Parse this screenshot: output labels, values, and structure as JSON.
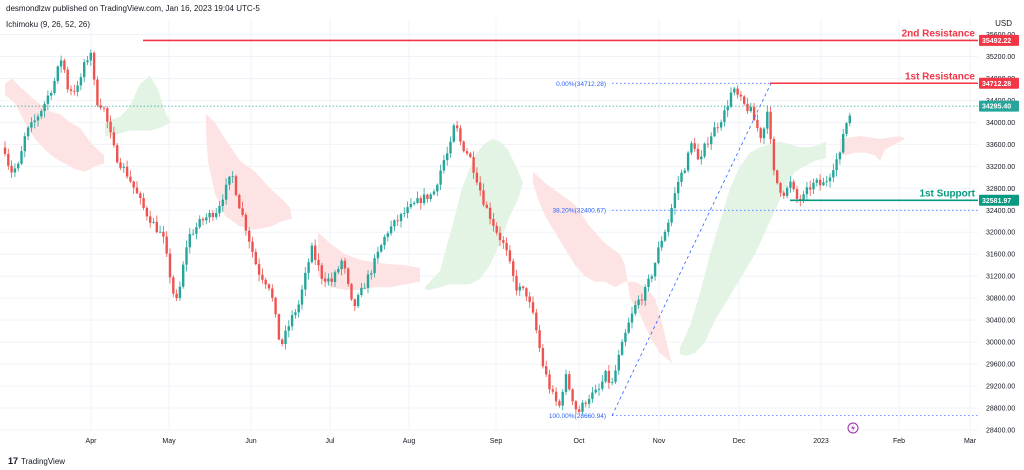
{
  "header": {
    "publish_line": "desmondlzw published on TradingView.com, Jan 16, 2023 19:04 UTC-5",
    "indicator_label": "Ichimoku (9, 26, 52, 26)",
    "currency": "USD",
    "brand_label": "TradingView"
  },
  "chart_data": {
    "type": "candlestick",
    "ylim": [
      28400,
      35700
    ],
    "y_ticks": [
      28400,
      28800,
      29200,
      29600,
      30000,
      30400,
      30800,
      31200,
      31600,
      32000,
      32400,
      32800,
      33200,
      33600,
      34000,
      34400,
      34800,
      35200,
      35600
    ],
    "x_tick_labels": [
      "Apr",
      "May",
      "Jun",
      "Jul",
      "Aug",
      "Sep",
      "Oct",
      "Nov",
      "Dec",
      "2023",
      "Feb",
      "Mar"
    ],
    "grid": true,
    "colors": {
      "up": "#26a69a",
      "down": "#ef5350",
      "resistance": "#f23645",
      "support": "#089981",
      "fib": "#2962ff",
      "cloud_bull": "#e3f4e5",
      "cloud_bear": "#fde3e3",
      "last_price": "#26a69a"
    },
    "anchors": [
      [
        0,
        33700
      ],
      [
        5,
        33500
      ],
      [
        10,
        33100
      ],
      [
        18,
        33200
      ],
      [
        25,
        33800
      ],
      [
        33,
        34000
      ],
      [
        42,
        34300
      ],
      [
        52,
        34700
      ],
      [
        60,
        35200
      ],
      [
        66,
        34600
      ],
      [
        75,
        34600
      ],
      [
        82,
        35050
      ],
      [
        88,
        35300
      ],
      [
        93,
        34400
      ],
      [
        100,
        34300
      ],
      [
        112,
        33400
      ],
      [
        125,
        33000
      ],
      [
        140,
        32400
      ],
      [
        158,
        31900
      ],
      [
        168,
        30900
      ],
      [
        172,
        30700
      ],
      [
        182,
        31900
      ],
      [
        195,
        32200
      ],
      [
        210,
        32400
      ],
      [
        225,
        33050
      ],
      [
        232,
        32500
      ],
      [
        236,
        32250
      ],
      [
        250,
        31300
      ],
      [
        262,
        31000
      ],
      [
        272,
        29900
      ],
      [
        282,
        30400
      ],
      [
        290,
        30700
      ],
      [
        302,
        31700
      ],
      [
        312,
        31200
      ],
      [
        322,
        31100
      ],
      [
        332,
        31500
      ],
      [
        342,
        30600
      ],
      [
        350,
        30900
      ],
      [
        362,
        31400
      ],
      [
        375,
        32000
      ],
      [
        392,
        32350
      ],
      [
        408,
        32600
      ],
      [
        420,
        32700
      ],
      [
        430,
        33300
      ],
      [
        436,
        33500
      ],
      [
        441,
        34000
      ],
      [
        447,
        33600
      ],
      [
        455,
        33400
      ],
      [
        462,
        33000
      ],
      [
        470,
        32500
      ],
      [
        475,
        32300
      ],
      [
        482,
        32000
      ],
      [
        490,
        31700
      ],
      [
        500,
        31000
      ],
      [
        510,
        30900
      ],
      [
        518,
        30400
      ],
      [
        526,
        29600
      ],
      [
        534,
        29100
      ],
      [
        542,
        28800
      ],
      [
        548,
        29400
      ],
      [
        553,
        29100
      ],
      [
        560,
        28700
      ],
      [
        570,
        29000
      ],
      [
        580,
        29100
      ],
      [
        587,
        29400
      ],
      [
        593,
        29200
      ],
      [
        601,
        29800
      ],
      [
        609,
        30300
      ],
      [
        617,
        30700
      ],
      [
        625,
        30900
      ],
      [
        633,
        31300
      ],
      [
        640,
        31800
      ],
      [
        648,
        32200
      ],
      [
        657,
        32900
      ],
      [
        664,
        33200
      ],
      [
        672,
        33700
      ],
      [
        678,
        33200
      ],
      [
        684,
        33600
      ],
      [
        690,
        33800
      ],
      [
        697,
        34000
      ],
      [
        703,
        34200
      ],
      [
        710,
        34600
      ],
      [
        716,
        34450
      ],
      [
        722,
        34300
      ],
      [
        728,
        34200
      ],
      [
        734,
        33900
      ],
      [
        739,
        33700
      ],
      [
        745,
        34400
      ],
      [
        748,
        33300
      ],
      [
        751,
        33000
      ],
      [
        756,
        32800
      ],
      [
        761,
        32700
      ],
      [
        766,
        32900
      ],
      [
        772,
        32600
      ],
      [
        778,
        32600
      ],
      [
        784,
        32800
      ],
      [
        791,
        32900
      ],
      [
        797,
        32850
      ],
      [
        803,
        33000
      ],
      [
        810,
        33300
      ],
      [
        815,
        33400
      ],
      [
        818,
        33900
      ],
      [
        822,
        34050
      ],
      [
        826,
        34250
      ]
    ],
    "cloud_bull": [
      [
        [
          105,
          34000
        ],
        [
          112,
          34050
        ],
        [
          120,
          34100
        ],
        [
          130,
          34300
        ],
        [
          140,
          34700
        ],
        [
          150,
          34850
        ],
        [
          158,
          34600
        ],
        [
          166,
          34150
        ],
        [
          171,
          34000
        ],
        [
          160,
          33900
        ],
        [
          150,
          33850
        ],
        [
          140,
          33850
        ],
        [
          130,
          33850
        ],
        [
          120,
          33800
        ],
        [
          110,
          33750
        ],
        [
          105,
          33750
        ]
      ],
      [
        [
          425,
          31000
        ],
        [
          440,
          31300
        ],
        [
          452,
          32100
        ],
        [
          462,
          32800
        ],
        [
          475,
          33400
        ],
        [
          484,
          33600
        ],
        [
          492,
          33700
        ],
        [
          500,
          33650
        ],
        [
          508,
          33500
        ],
        [
          516,
          33200
        ],
        [
          523,
          32900
        ],
        [
          518,
          32600
        ],
        [
          510,
          32300
        ],
        [
          500,
          31800
        ],
        [
          490,
          31400
        ],
        [
          480,
          31150
        ],
        [
          470,
          31050
        ],
        [
          460,
          31050
        ],
        [
          450,
          31050
        ],
        [
          440,
          31000
        ],
        [
          430,
          30950
        ],
        [
          425,
          30950
        ]
      ],
      [
        [
          680,
          29900
        ],
        [
          690,
          30300
        ],
        [
          700,
          30900
        ],
        [
          710,
          31600
        ],
        [
          720,
          32200
        ],
        [
          730,
          32800
        ],
        [
          740,
          33200
        ],
        [
          750,
          33450
        ],
        [
          760,
          33550
        ],
        [
          770,
          33600
        ],
        [
          780,
          33650
        ],
        [
          790,
          33600
        ],
        [
          800,
          33550
        ],
        [
          810,
          33550
        ],
        [
          820,
          33600
        ],
        [
          826,
          33650
        ],
        [
          826,
          33350
        ],
        [
          815,
          33300
        ],
        [
          805,
          33200
        ],
        [
          795,
          33100
        ],
        [
          785,
          32800
        ],
        [
          775,
          32400
        ],
        [
          765,
          32000
        ],
        [
          755,
          31600
        ],
        [
          745,
          31300
        ],
        [
          735,
          31000
        ],
        [
          725,
          30700
        ],
        [
          715,
          30400
        ],
        [
          705,
          30000
        ],
        [
          695,
          29800
        ],
        [
          685,
          29750
        ],
        [
          680,
          29780
        ]
      ]
    ],
    "cloud_bear": [
      [
        [
          5,
          34700
        ],
        [
          12,
          34800
        ],
        [
          20,
          34650
        ],
        [
          35,
          34400
        ],
        [
          50,
          34200
        ],
        [
          60,
          34150
        ],
        [
          70,
          34000
        ],
        [
          80,
          33900
        ],
        [
          92,
          33600
        ],
        [
          104,
          33400
        ],
        [
          104,
          33250
        ],
        [
          95,
          33200
        ],
        [
          85,
          33100
        ],
        [
          75,
          33150
        ],
        [
          65,
          33250
        ],
        [
          55,
          33350
        ],
        [
          45,
          33500
        ],
        [
          35,
          33700
        ],
        [
          25,
          34000
        ],
        [
          15,
          34350
        ],
        [
          5,
          34500
        ]
      ],
      [
        [
          206,
          34150
        ],
        [
          215,
          34000
        ],
        [
          225,
          33700
        ],
        [
          240,
          33300
        ],
        [
          255,
          33100
        ],
        [
          270,
          32800
        ],
        [
          282,
          32600
        ],
        [
          290,
          32450
        ],
        [
          292,
          32250
        ],
        [
          282,
          32200
        ],
        [
          270,
          32100
        ],
        [
          255,
          32050
        ],
        [
          240,
          32100
        ],
        [
          225,
          32300
        ],
        [
          215,
          32700
        ],
        [
          208,
          33300
        ],
        [
          206,
          33800
        ]
      ],
      [
        [
          318,
          32000
        ],
        [
          330,
          31800
        ],
        [
          345,
          31600
        ],
        [
          360,
          31500
        ],
        [
          375,
          31450
        ],
        [
          390,
          31420
        ],
        [
          405,
          31400
        ],
        [
          420,
          31350
        ],
        [
          420,
          31100
        ],
        [
          405,
          31050
        ],
        [
          390,
          31000
        ],
        [
          375,
          31000
        ],
        [
          360,
          30950
        ],
        [
          345,
          30950
        ],
        [
          330,
          31000
        ],
        [
          318,
          31200
        ]
      ],
      [
        [
          533,
          33100
        ],
        [
          545,
          32900
        ],
        [
          560,
          32700
        ],
        [
          575,
          32500
        ],
        [
          590,
          32100
        ],
        [
          605,
          31800
        ],
        [
          620,
          31600
        ],
        [
          625,
          31400
        ],
        [
          630,
          30800
        ],
        [
          640,
          30500
        ],
        [
          650,
          30100
        ],
        [
          660,
          29800
        ],
        [
          670,
          29650
        ],
        [
          672,
          29600
        ],
        [
          668,
          29900
        ],
        [
          660,
          30500
        ],
        [
          655,
          30800
        ],
        [
          645,
          31000
        ],
        [
          635,
          31100
        ],
        [
          625,
          31100
        ],
        [
          615,
          31000
        ],
        [
          605,
          31100
        ],
        [
          595,
          31100
        ],
        [
          585,
          31200
        ],
        [
          575,
          31400
        ],
        [
          565,
          31700
        ],
        [
          555,
          32000
        ],
        [
          545,
          32300
        ],
        [
          538,
          32600
        ],
        [
          533,
          32900
        ]
      ],
      [
        [
          840,
          33700
        ],
        [
          860,
          33750
        ],
        [
          880,
          33700
        ],
        [
          900,
          33750
        ],
        [
          905,
          33700
        ],
        [
          895,
          33600
        ],
        [
          885,
          33500
        ],
        [
          880,
          33300
        ],
        [
          875,
          33400
        ],
        [
          865,
          33450
        ],
        [
          855,
          33450
        ],
        [
          845,
          33400
        ],
        [
          840,
          33450
        ]
      ]
    ],
    "levels": [
      {
        "label": "2nd Resistance",
        "value": 35492.22,
        "tag": "35492.22",
        "type": "resistance",
        "x_start": 143
      },
      {
        "label": "1st Resistance",
        "value": 34712.28,
        "tag": "34712.28",
        "type": "resistance",
        "x_start": 770
      },
      {
        "label": "1st Support",
        "value": 32581.97,
        "tag": "32581.97",
        "type": "support",
        "x_start": 790
      }
    ],
    "last_price": {
      "value": 34295.4,
      "tag": "34295.40"
    },
    "fib": [
      {
        "label": "0.00%(34712.28)",
        "value": 34712.28
      },
      {
        "label": "38.20%(32400.67)",
        "value": 32400.67
      },
      {
        "label": "100.00%(28660.94)",
        "value": 28660.94
      }
    ],
    "fib_line": {
      "from": [
        612,
        28660.94
      ],
      "to": [
        771,
        34712.28
      ]
    }
  }
}
